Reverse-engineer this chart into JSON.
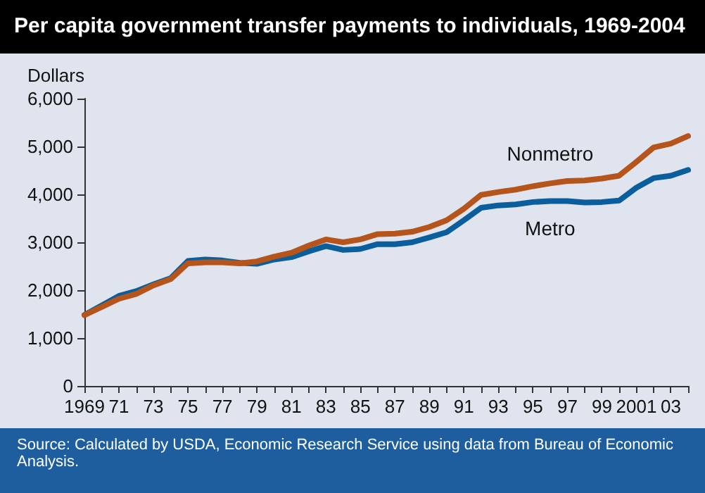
{
  "chart_data": {
    "type": "line",
    "title": "Per capita government transfer payments to individuals, 1969-2004",
    "ylabel": "Dollars",
    "categories": [
      "1969",
      null,
      "71",
      null,
      "73",
      null,
      "75",
      null,
      "77",
      null,
      "79",
      null,
      "81",
      null,
      "83",
      null,
      "85",
      null,
      "87",
      null,
      "89",
      null,
      "91",
      null,
      "93",
      null,
      "95",
      null,
      "97",
      null,
      "99",
      null,
      "2001",
      null,
      "03",
      null
    ],
    "series": [
      {
        "name": "Metro",
        "color": "#0a5e9b",
        "values": [
          1480,
          1680,
          1880,
          1980,
          2120,
          2250,
          2610,
          2640,
          2620,
          2570,
          2550,
          2640,
          2690,
          2810,
          2920,
          2840,
          2860,
          2960,
          2960,
          3000,
          3100,
          3210,
          3460,
          3720,
          3770,
          3790,
          3840,
          3860,
          3860,
          3830,
          3840,
          3870,
          4140,
          4340,
          4390,
          4510
        ]
      },
      {
        "name": "Nonmetro",
        "color": "#b5541b",
        "values": [
          1480,
          1650,
          1820,
          1920,
          2100,
          2230,
          2560,
          2580,
          2580,
          2560,
          2600,
          2700,
          2780,
          2930,
          3060,
          3000,
          3060,
          3170,
          3180,
          3220,
          3320,
          3460,
          3700,
          3990,
          4050,
          4100,
          4170,
          4230,
          4280,
          4290,
          4330,
          4390,
          4680,
          4980,
          5060,
          5220
        ]
      }
    ],
    "ylim": [
      0,
      6000
    ],
    "yticks": [
      0,
      {
        "value": 1000,
        "label": "1,000"
      },
      {
        "value": 2000,
        "label": "2,000"
      },
      {
        "value": 3000,
        "label": "3,000"
      },
      {
        "value": 4000,
        "label": "4,000"
      },
      {
        "value": 5000,
        "label": "5,000"
      },
      {
        "value": 6000,
        "label": "6,000"
      }
    ],
    "grid": false,
    "legend": false,
    "marker": "none",
    "line_style": "solid",
    "annotations": [
      "Source:  Calculated by USDA, Economic Research Service using data from Bureau of Economic Analysis."
    ]
  }
}
